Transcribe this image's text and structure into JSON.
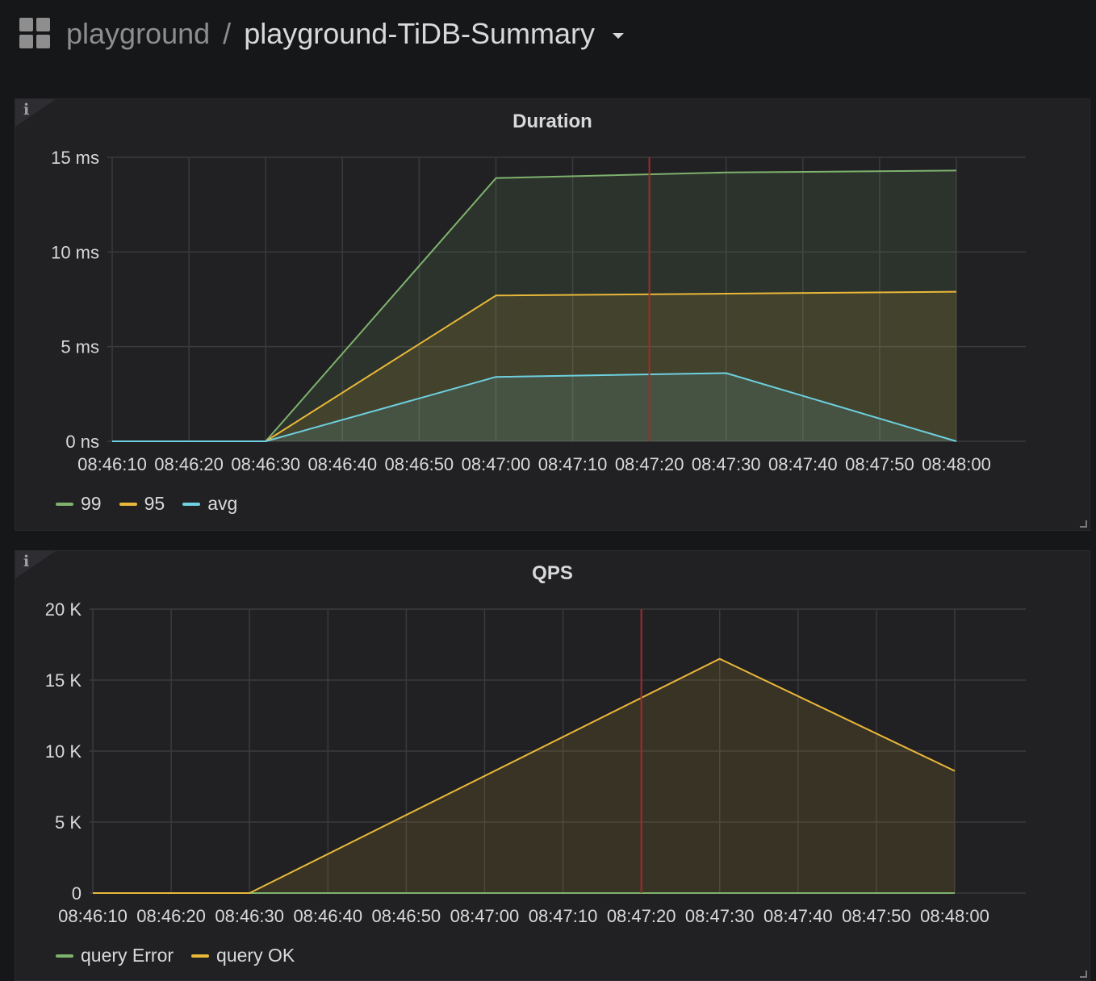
{
  "header": {
    "folder": "playground",
    "separator": "/",
    "dashboard_title": "playground-TiDB-Summary"
  },
  "icons": {
    "apps": "apps-grid-icon",
    "dropdown": "caret-down-icon",
    "info": "info-icon"
  },
  "colors": {
    "background": "#161719",
    "panel": "#212124",
    "grid": "#3a3a3d",
    "cursor": "#a52a2a",
    "green": "#7eb26d",
    "yellow": "#eab839",
    "blue": "#6ed0e0"
  },
  "chart_data": [
    {
      "type": "area",
      "title": "Duration",
      "x": [
        "08:46:10",
        "08:46:20",
        "08:46:30",
        "08:46:40",
        "08:46:50",
        "08:47:00",
        "08:47:10",
        "08:47:20",
        "08:47:30",
        "08:47:40",
        "08:47:50",
        "08:48:00"
      ],
      "y_ticks": [
        "0 ns",
        "5 ms",
        "10 ms",
        "15 ms"
      ],
      "ylim": [
        0,
        15
      ],
      "y_unit": "ms",
      "grid": true,
      "legend_position": "bottom-left",
      "cursor_x": "08:47:20",
      "series": [
        {
          "name": "99",
          "color": "#7eb26d",
          "x": [
            "08:46:10",
            "08:46:30",
            "08:47:00",
            "08:47:30",
            "08:48:00"
          ],
          "values": [
            0,
            0,
            13.9,
            14.2,
            14.3
          ]
        },
        {
          "name": "95",
          "color": "#eab839",
          "x": [
            "08:46:10",
            "08:46:30",
            "08:47:00",
            "08:47:30",
            "08:48:00"
          ],
          "values": [
            0,
            0,
            7.7,
            7.8,
            7.9
          ]
        },
        {
          "name": "avg",
          "color": "#6ed0e0",
          "x": [
            "08:46:10",
            "08:46:30",
            "08:47:00",
            "08:47:30",
            "08:48:00"
          ],
          "values": [
            0,
            0,
            3.4,
            3.6,
            0
          ]
        }
      ]
    },
    {
      "type": "area",
      "title": "QPS",
      "x": [
        "08:46:10",
        "08:46:20",
        "08:46:30",
        "08:46:40",
        "08:46:50",
        "08:47:00",
        "08:47:10",
        "08:47:20",
        "08:47:30",
        "08:47:40",
        "08:47:50",
        "08:48:00"
      ],
      "y_ticks": [
        "0",
        "5 K",
        "10 K",
        "15 K",
        "20 K"
      ],
      "ylim": [
        0,
        20000
      ],
      "grid": true,
      "legend_position": "bottom-left",
      "cursor_x": "08:47:20",
      "series": [
        {
          "name": "query Error",
          "color": "#7eb26d",
          "x": [
            "08:46:10",
            "08:46:30",
            "08:47:30",
            "08:48:00"
          ],
          "values": [
            0,
            0,
            0,
            0
          ]
        },
        {
          "name": "query OK",
          "color": "#eab839",
          "x": [
            "08:46:10",
            "08:46:30",
            "08:47:30",
            "08:48:00"
          ],
          "values": [
            0,
            0,
            16500,
            8600
          ]
        }
      ]
    }
  ]
}
